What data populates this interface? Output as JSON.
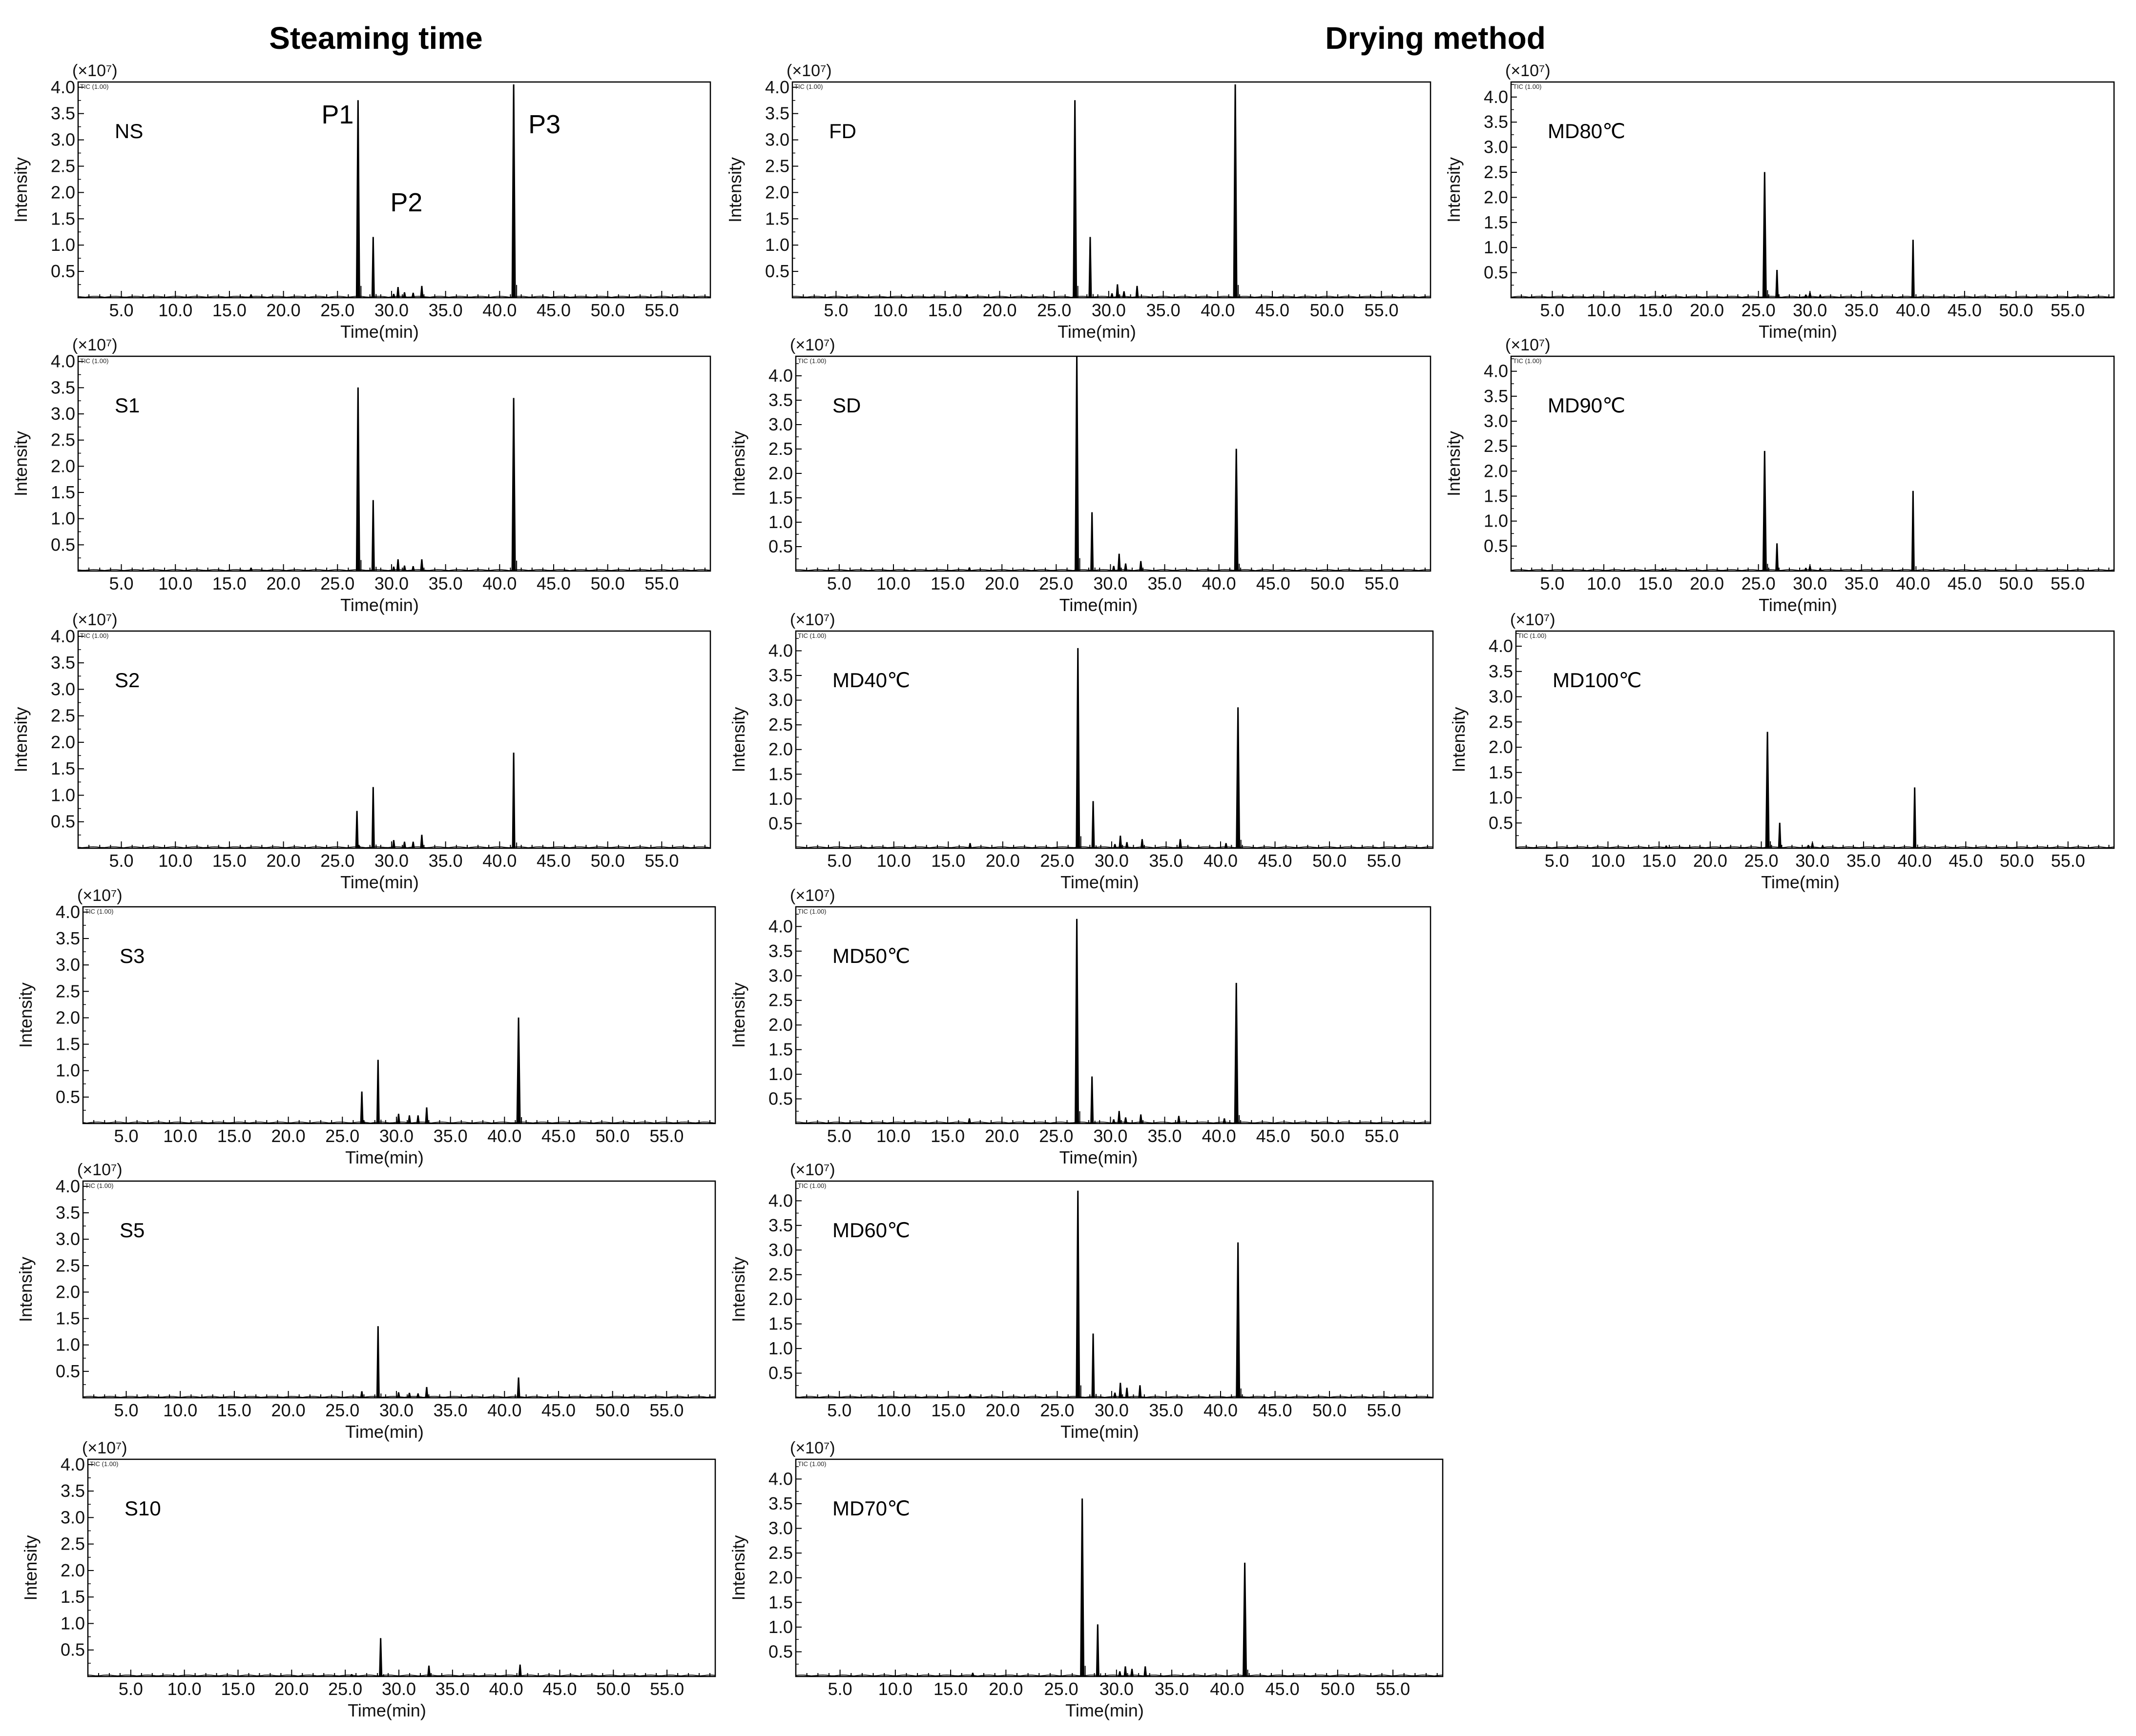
{
  "headings": {
    "left": "Steaming time",
    "right": "Drying method"
  },
  "common": {
    "xlabel": "Time(min)",
    "ylabel": "Intensity",
    "scale": "(×10⁷)",
    "tic": "TIC (1.00)",
    "xticks": [
      "5.0",
      "10.0",
      "15.0",
      "20.0",
      "25.0",
      "30.0",
      "35.0",
      "40.0",
      "45.0",
      "50.0",
      "55.0"
    ],
    "yticks": [
      "0.5",
      "1.0",
      "1.5",
      "2.0",
      "2.5",
      "3.0",
      "3.5",
      "4.0"
    ]
  },
  "chart_data": [
    {
      "type": "line",
      "sample": "NS",
      "xlabel": "Time(min)",
      "ylabel": "Intensity",
      "xlim": [
        1,
        59.5
      ],
      "ylim": [
        0,
        4.1
      ],
      "grid": false,
      "peak_labels": [
        {
          "text": "P1",
          "x": 26.9
        },
        {
          "text": "P2",
          "x": 28.3
        },
        {
          "text": "P3",
          "x": 41.3
        }
      ],
      "peaks": [
        [
          17.0,
          0.06
        ],
        [
          26.9,
          3.75
        ],
        [
          28.3,
          1.15
        ],
        [
          30.2,
          0.07
        ],
        [
          30.6,
          0.2
        ],
        [
          31.2,
          0.1
        ],
        [
          32.0,
          0.09
        ],
        [
          32.8,
          0.22
        ],
        [
          41.3,
          4.05
        ]
      ]
    },
    {
      "type": "line",
      "sample": "FD",
      "xlabel": "Time(min)",
      "ylabel": "Intensity",
      "xlim": [
        1,
        59.5
      ],
      "ylim": [
        0,
        4.1
      ],
      "grid": false,
      "peaks": [
        [
          17.0,
          0.06
        ],
        [
          26.9,
          3.75
        ],
        [
          28.3,
          1.15
        ],
        [
          30.3,
          0.08
        ],
        [
          30.8,
          0.25
        ],
        [
          31.4,
          0.12
        ],
        [
          32.6,
          0.22
        ],
        [
          41.6,
          4.05
        ]
      ]
    },
    {
      "type": "line",
      "sample": "MD80℃",
      "xlabel": "Time(min)",
      "ylabel": "Intensity",
      "xlim": [
        1,
        59.5
      ],
      "ylim": [
        0,
        4.3
      ],
      "grid": false,
      "peaks": [
        [
          15.7,
          0.05
        ],
        [
          25.6,
          2.5
        ],
        [
          26.8,
          0.55
        ],
        [
          29.6,
          0.06
        ],
        [
          30.0,
          0.1
        ],
        [
          31.0,
          0.05
        ],
        [
          40.0,
          1.15
        ]
      ]
    },
    {
      "type": "line",
      "sample": "S1",
      "xlabel": "Time(min)",
      "ylabel": "Intensity",
      "xlim": [
        1,
        59.5
      ],
      "ylim": [
        0,
        4.1
      ],
      "grid": false,
      "peaks": [
        [
          17.0,
          0.06
        ],
        [
          26.9,
          3.5
        ],
        [
          28.3,
          1.35
        ],
        [
          30.2,
          0.08
        ],
        [
          30.6,
          0.22
        ],
        [
          31.2,
          0.1
        ],
        [
          32.0,
          0.09
        ],
        [
          32.8,
          0.22
        ],
        [
          41.3,
          3.3
        ]
      ]
    },
    {
      "type": "line",
      "sample": "SD",
      "xlabel": "Time(min)",
      "ylabel": "Intensity",
      "xlim": [
        1,
        59.5
      ],
      "ylim": [
        0,
        4.4
      ],
      "grid": false,
      "peaks": [
        [
          17.0,
          0.07
        ],
        [
          26.9,
          4.4
        ],
        [
          28.3,
          1.2
        ],
        [
          30.3,
          0.1
        ],
        [
          30.8,
          0.35
        ],
        [
          31.4,
          0.15
        ],
        [
          32.8,
          0.2
        ],
        [
          41.6,
          2.5
        ]
      ]
    },
    {
      "type": "line",
      "sample": "MD90℃",
      "xlabel": "Time(min)",
      "ylabel": "Intensity",
      "xlim": [
        1,
        59.5
      ],
      "ylim": [
        0,
        4.3
      ],
      "grid": false,
      "peaks": [
        [
          15.7,
          0.05
        ],
        [
          25.6,
          2.4
        ],
        [
          26.8,
          0.55
        ],
        [
          29.6,
          0.06
        ],
        [
          30.0,
          0.1
        ],
        [
          31.0,
          0.05
        ],
        [
          40.0,
          1.6
        ]
      ]
    },
    {
      "type": "line",
      "sample": "S2",
      "xlabel": "Time(min)",
      "ylabel": "Intensity",
      "xlim": [
        1,
        59.5
      ],
      "ylim": [
        0,
        4.1
      ],
      "grid": false,
      "peaks": [
        [
          26.8,
          0.7
        ],
        [
          28.3,
          1.15
        ],
        [
          30.2,
          0.15
        ],
        [
          31.2,
          0.12
        ],
        [
          32.0,
          0.12
        ],
        [
          32.8,
          0.25
        ],
        [
          41.3,
          1.8
        ]
      ]
    },
    {
      "type": "line",
      "sample": "MD40℃",
      "xlabel": "Time(min)",
      "ylabel": "Intensity",
      "xlim": [
        1,
        59.5
      ],
      "ylim": [
        0,
        4.4
      ],
      "grid": false,
      "peaks": [
        [
          17.0,
          0.1
        ],
        [
          26.9,
          4.05
        ],
        [
          28.3,
          0.95
        ],
        [
          30.3,
          0.08
        ],
        [
          30.8,
          0.25
        ],
        [
          31.4,
          0.12
        ],
        [
          32.8,
          0.18
        ],
        [
          36.3,
          0.18
        ],
        [
          40.5,
          0.1
        ],
        [
          41.6,
          2.85
        ]
      ]
    },
    {
      "type": "line",
      "sample": "MD100℃",
      "xlabel": "Time(min)",
      "ylabel": "Intensity",
      "xlim": [
        1,
        59.5
      ],
      "ylim": [
        0,
        4.3
      ],
      "grid": false,
      "peaks": [
        [
          15.7,
          0.05
        ],
        [
          25.6,
          2.3
        ],
        [
          26.8,
          0.5
        ],
        [
          29.6,
          0.06
        ],
        [
          30.0,
          0.1
        ],
        [
          31.0,
          0.05
        ],
        [
          40.0,
          1.2
        ]
      ]
    },
    {
      "type": "line",
      "sample": "S3",
      "xlabel": "Time(min)",
      "ylabel": "Intensity",
      "xlim": [
        1,
        59.5
      ],
      "ylim": [
        0,
        4.1
      ],
      "grid": false,
      "peaks": [
        [
          26.8,
          0.6
        ],
        [
          28.3,
          1.2
        ],
        [
          30.2,
          0.18
        ],
        [
          31.2,
          0.15
        ],
        [
          32.0,
          0.15
        ],
        [
          32.8,
          0.3
        ],
        [
          41.3,
          2.0
        ]
      ]
    },
    {
      "type": "line",
      "sample": "MD50℃",
      "xlabel": "Time(min)",
      "ylabel": "Intensity",
      "xlim": [
        1,
        59.5
      ],
      "ylim": [
        0,
        4.4
      ],
      "grid": false,
      "peaks": [
        [
          17.0,
          0.1
        ],
        [
          26.9,
          4.15
        ],
        [
          28.3,
          0.95
        ],
        [
          30.3,
          0.08
        ],
        [
          30.8,
          0.25
        ],
        [
          31.4,
          0.12
        ],
        [
          32.8,
          0.18
        ],
        [
          36.3,
          0.15
        ],
        [
          40.5,
          0.1
        ],
        [
          41.6,
          2.85
        ]
      ]
    },
    {
      "type": "line",
      "sample": "S5",
      "xlabel": "Time(min)",
      "ylabel": "Intensity",
      "xlim": [
        1,
        59.5
      ],
      "ylim": [
        0,
        4.1
      ],
      "grid": false,
      "peaks": [
        [
          26.8,
          0.12
        ],
        [
          28.3,
          1.35
        ],
        [
          30.2,
          0.1
        ],
        [
          31.2,
          0.09
        ],
        [
          32.0,
          0.08
        ],
        [
          32.8,
          0.2
        ],
        [
          41.3,
          0.38
        ]
      ]
    },
    {
      "type": "line",
      "sample": "MD60℃",
      "xlabel": "Time(min)",
      "ylabel": "Intensity",
      "xlim": [
        1,
        59.5
      ],
      "ylim": [
        0,
        4.4
      ],
      "grid": false,
      "peaks": [
        [
          17.0,
          0.07
        ],
        [
          26.9,
          4.2
        ],
        [
          28.3,
          1.3
        ],
        [
          30.3,
          0.1
        ],
        [
          30.8,
          0.3
        ],
        [
          31.4,
          0.2
        ],
        [
          32.6,
          0.25
        ],
        [
          41.6,
          3.15
        ]
      ]
    },
    {
      "type": "line",
      "sample": "S10",
      "xlabel": "Time(min)",
      "ylabel": "Intensity",
      "xlim": [
        1,
        59.5
      ],
      "ylim": [
        0,
        4.1
      ],
      "grid": false,
      "peaks": [
        [
          25.6,
          0.04
        ],
        [
          28.3,
          0.72
        ],
        [
          32.8,
          0.2
        ],
        [
          41.3,
          0.22
        ]
      ]
    },
    {
      "type": "line",
      "sample": "MD70℃",
      "xlabel": "Time(min)",
      "ylabel": "Intensity",
      "xlim": [
        1,
        59.5
      ],
      "ylim": [
        0,
        4.4
      ],
      "grid": false,
      "peaks": [
        [
          17.0,
          0.07
        ],
        [
          26.9,
          3.6
        ],
        [
          28.3,
          1.05
        ],
        [
          30.3,
          0.1
        ],
        [
          30.8,
          0.2
        ],
        [
          31.4,
          0.15
        ],
        [
          32.6,
          0.2
        ],
        [
          41.6,
          2.3
        ]
      ]
    }
  ]
}
